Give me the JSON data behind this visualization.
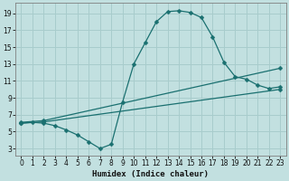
{
  "title": "",
  "xlabel": "Humidex (Indice chaleur)",
  "ylabel": "",
  "bg_color": "#c2e0e0",
  "grid_color": "#a8cccc",
  "line_color": "#1a7070",
  "x_ticks": [
    0,
    1,
    2,
    3,
    4,
    5,
    6,
    7,
    8,
    9,
    10,
    11,
    12,
    13,
    14,
    15,
    16,
    17,
    18,
    19,
    20,
    21,
    22,
    23
  ],
  "y_ticks": [
    3,
    5,
    7,
    9,
    11,
    13,
    15,
    17,
    19
  ],
  "xlim": [
    -0.5,
    23.5
  ],
  "ylim": [
    2.2,
    20.2
  ],
  "line1_x": [
    0,
    1,
    2,
    3,
    4,
    5,
    6,
    7,
    8,
    9,
    10,
    11,
    12,
    13,
    14,
    15,
    16,
    17,
    18,
    19,
    20,
    21,
    22,
    23
  ],
  "line1_y": [
    6.0,
    6.1,
    6.0,
    5.7,
    5.2,
    4.6,
    3.8,
    3.0,
    3.5,
    8.5,
    13.0,
    15.5,
    18.0,
    19.2,
    19.3,
    19.1,
    18.5,
    16.2,
    13.2,
    11.5,
    11.2,
    10.5,
    10.1,
    10.3
  ],
  "line2_x": [
    0,
    2,
    23
  ],
  "line2_y": [
    6.1,
    6.3,
    12.5
  ],
  "line3_x": [
    0,
    2,
    23
  ],
  "line3_y": [
    6.0,
    6.15,
    10.0
  ]
}
